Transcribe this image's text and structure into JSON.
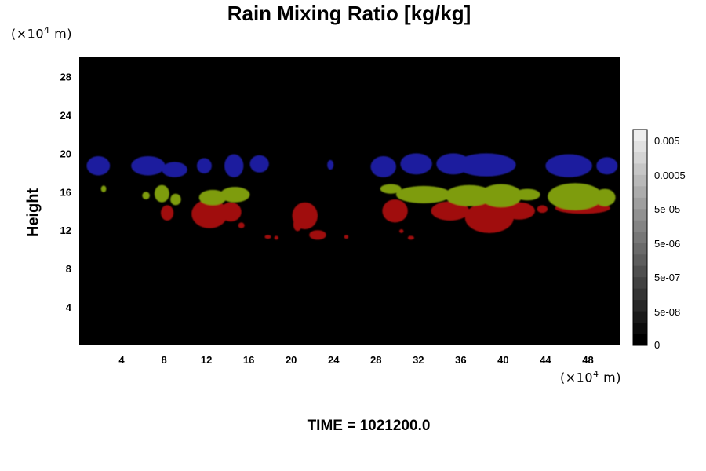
{
  "chart_data": {
    "type": "heatmap",
    "title": "Rain Mixing Ratio [kg/kg]",
    "xlabel": "",
    "ylabel": "Height",
    "x_unit": "(×10",
    "y_unit": "(×10",
    "unit_exp": "4",
    "unit_suffix": " m)",
    "xlim": [
      0,
      51
    ],
    "ylim": [
      0,
      30
    ],
    "x_ticks": [
      4,
      8,
      12,
      16,
      20,
      24,
      28,
      32,
      36,
      40,
      44,
      48
    ],
    "y_ticks": [
      4,
      8,
      12,
      16,
      20,
      24,
      28
    ],
    "background_color": "#000000",
    "colorbar": {
      "labels": [
        "0.005",
        "0.0005",
        "5e-05",
        "5e-06",
        "5e-07",
        "5e-08",
        "0"
      ],
      "label_values": [
        0.005,
        0.0005,
        5e-05,
        5e-06,
        5e-07,
        5e-08,
        0
      ],
      "levels": 19
    },
    "regions": [
      {
        "layer": "blue",
        "color": "#1b1f9e",
        "blobs": [
          {
            "x": 1.8,
            "y": 18.7,
            "rx": 1.1,
            "ry": 1.0
          },
          {
            "x": 6.5,
            "y": 18.7,
            "rx": 1.6,
            "ry": 1.0
          },
          {
            "x": 9.0,
            "y": 18.3,
            "rx": 1.2,
            "ry": 0.8
          },
          {
            "x": 11.8,
            "y": 18.7,
            "rx": 0.7,
            "ry": 0.8
          },
          {
            "x": 14.6,
            "y": 18.7,
            "rx": 0.9,
            "ry": 1.2
          },
          {
            "x": 17.0,
            "y": 18.9,
            "rx": 0.9,
            "ry": 0.9
          },
          {
            "x": 23.7,
            "y": 18.8,
            "rx": 0.3,
            "ry": 0.5
          },
          {
            "x": 28.7,
            "y": 18.6,
            "rx": 1.2,
            "ry": 1.1
          },
          {
            "x": 31.8,
            "y": 18.9,
            "rx": 1.5,
            "ry": 1.1
          },
          {
            "x": 35.3,
            "y": 18.9,
            "rx": 1.6,
            "ry": 1.1
          },
          {
            "x": 38.4,
            "y": 18.8,
            "rx": 2.8,
            "ry": 1.2
          },
          {
            "x": 46.2,
            "y": 18.7,
            "rx": 2.2,
            "ry": 1.2
          },
          {
            "x": 49.8,
            "y": 18.7,
            "rx": 1.0,
            "ry": 0.9
          }
        ]
      },
      {
        "layer": "red",
        "color": "#a00d0d",
        "blobs": [
          {
            "x": 8.3,
            "y": 13.8,
            "rx": 0.6,
            "ry": 0.8
          },
          {
            "x": 12.3,
            "y": 13.7,
            "rx": 1.7,
            "ry": 1.5
          },
          {
            "x": 14.3,
            "y": 13.9,
            "rx": 1.0,
            "ry": 1.0
          },
          {
            "x": 15.3,
            "y": 12.5,
            "rx": 0.3,
            "ry": 0.3
          },
          {
            "x": 17.8,
            "y": 11.3,
            "rx": 0.3,
            "ry": 0.2
          },
          {
            "x": 18.6,
            "y": 11.2,
            "rx": 0.2,
            "ry": 0.2
          },
          {
            "x": 21.3,
            "y": 13.5,
            "rx": 1.2,
            "ry": 1.4
          },
          {
            "x": 20.6,
            "y": 12.6,
            "rx": 0.4,
            "ry": 0.7
          },
          {
            "x": 22.5,
            "y": 11.5,
            "rx": 0.8,
            "ry": 0.5
          },
          {
            "x": 25.2,
            "y": 11.3,
            "rx": 0.2,
            "ry": 0.2
          },
          {
            "x": 29.8,
            "y": 14.0,
            "rx": 1.2,
            "ry": 1.2
          },
          {
            "x": 30.4,
            "y": 11.9,
            "rx": 0.2,
            "ry": 0.2
          },
          {
            "x": 31.3,
            "y": 11.2,
            "rx": 0.3,
            "ry": 0.2
          },
          {
            "x": 35.0,
            "y": 14.0,
            "rx": 1.8,
            "ry": 1.0
          },
          {
            "x": 38.7,
            "y": 13.3,
            "rx": 2.3,
            "ry": 1.6
          },
          {
            "x": 41.5,
            "y": 14.0,
            "rx": 1.5,
            "ry": 0.9
          },
          {
            "x": 43.7,
            "y": 14.2,
            "rx": 0.5,
            "ry": 0.4
          },
          {
            "x": 47.5,
            "y": 14.3,
            "rx": 2.6,
            "ry": 0.6
          }
        ]
      },
      {
        "layer": "green",
        "color": "#7e9c10",
        "blobs": [
          {
            "x": 2.3,
            "y": 16.3,
            "rx": 0.25,
            "ry": 0.35
          },
          {
            "x": 6.3,
            "y": 15.6,
            "rx": 0.35,
            "ry": 0.4
          },
          {
            "x": 7.8,
            "y": 15.8,
            "rx": 0.7,
            "ry": 0.9
          },
          {
            "x": 9.1,
            "y": 15.2,
            "rx": 0.5,
            "ry": 0.6
          },
          {
            "x": 12.6,
            "y": 15.4,
            "rx": 1.3,
            "ry": 0.8
          },
          {
            "x": 14.7,
            "y": 15.7,
            "rx": 1.4,
            "ry": 0.8
          },
          {
            "x": 29.4,
            "y": 16.3,
            "rx": 1.0,
            "ry": 0.5
          },
          {
            "x": 32.5,
            "y": 15.7,
            "rx": 2.6,
            "ry": 0.9
          },
          {
            "x": 36.8,
            "y": 15.6,
            "rx": 2.3,
            "ry": 1.1
          },
          {
            "x": 39.8,
            "y": 15.6,
            "rx": 2.0,
            "ry": 1.2
          },
          {
            "x": 42.3,
            "y": 15.7,
            "rx": 1.2,
            "ry": 0.6
          },
          {
            "x": 46.8,
            "y": 15.5,
            "rx": 2.6,
            "ry": 1.4
          },
          {
            "x": 49.6,
            "y": 15.4,
            "rx": 1.0,
            "ry": 0.9
          }
        ]
      }
    ]
  },
  "footer": {
    "time_label": "TIME = 1021200.0"
  }
}
